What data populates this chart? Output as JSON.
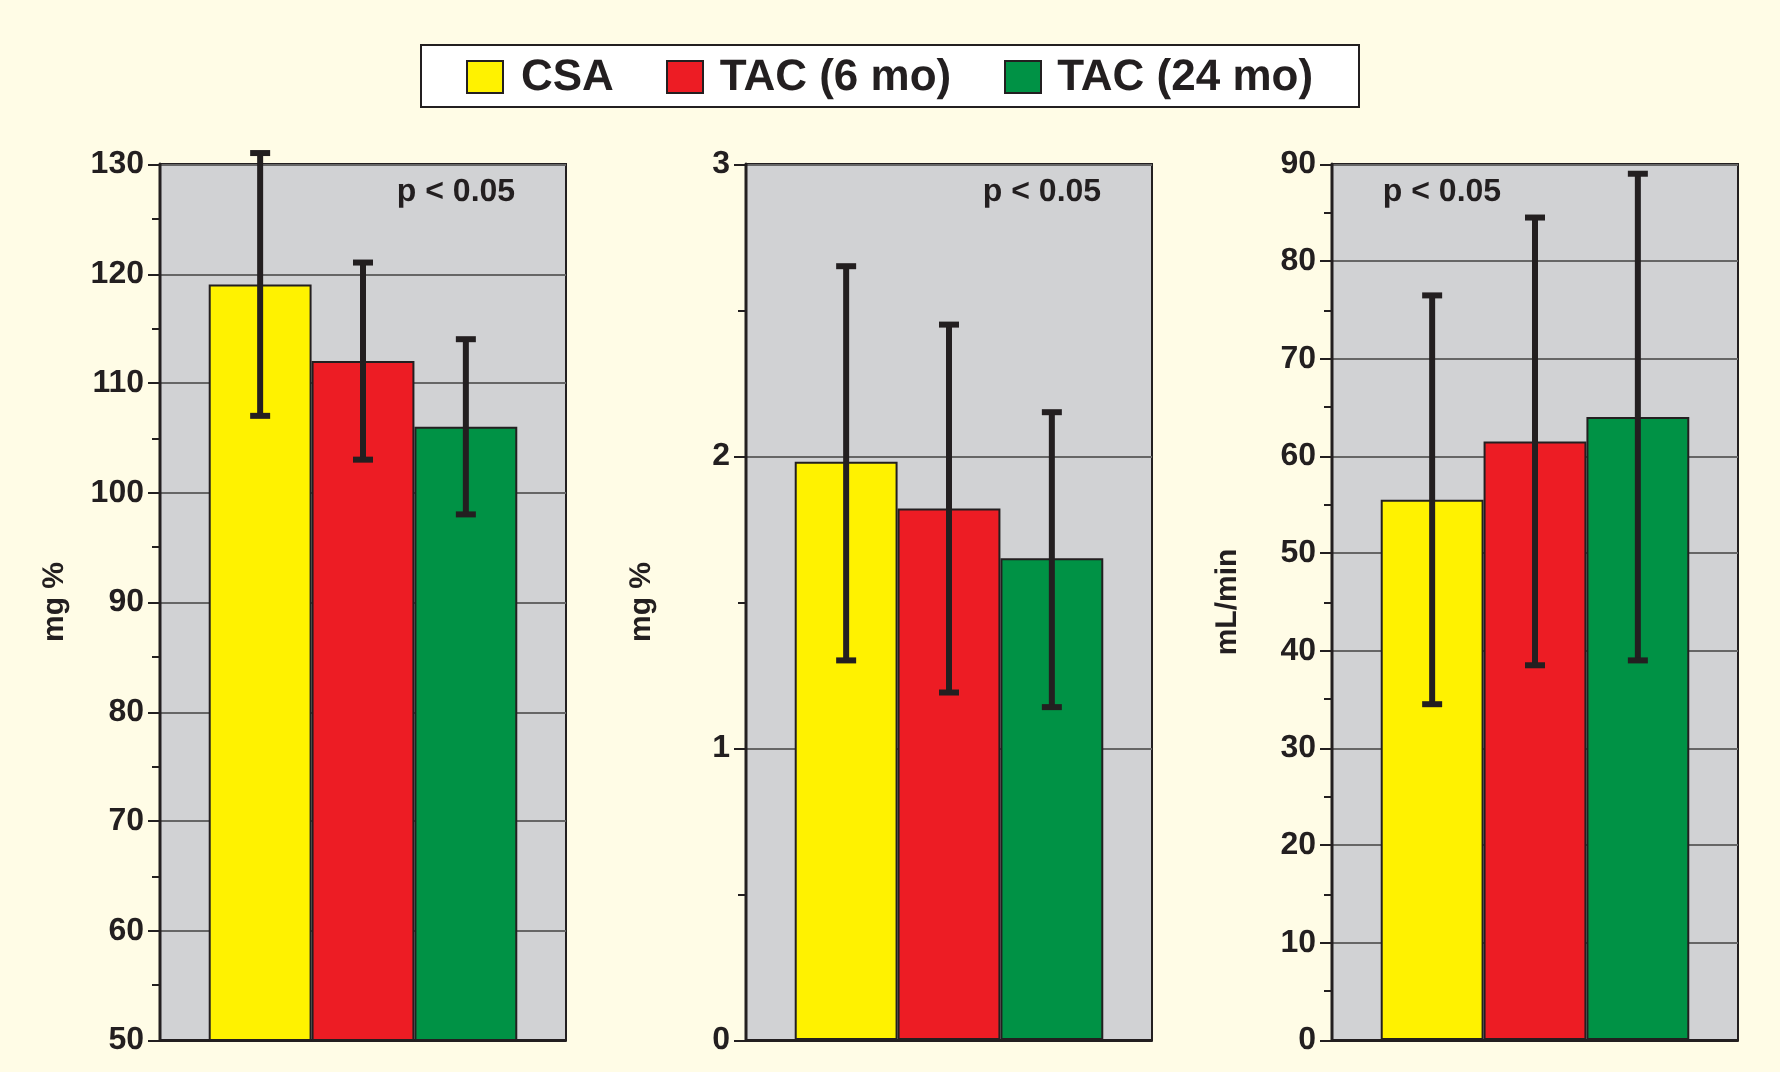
{
  "chart_data": [
    {
      "type": "bar",
      "categories": [
        null
      ],
      "ylabel": "mg %",
      "ylim": [
        50,
        130
      ],
      "yticks": [
        50,
        60,
        70,
        80,
        90,
        100,
        110,
        120,
        130
      ],
      "grid": "y",
      "legend": "top",
      "annotations": [
        "p < 0.05"
      ],
      "series": [
        {
          "name": "CSA",
          "color": "#fff200",
          "values": [
            119
          ],
          "errors": [
            [
              107,
              131
            ]
          ]
        },
        {
          "name": "TAC (6 mo)",
          "color": "#ed1c24",
          "values": [
            112
          ],
          "errors": [
            [
              103,
              121
            ]
          ]
        },
        {
          "name": "TAC (24 mo)",
          "color": "#009245",
          "values": [
            106
          ],
          "errors": [
            [
              98,
              114
            ]
          ]
        }
      ]
    },
    {
      "type": "bar",
      "categories": [
        null
      ],
      "ylabel": "mg %",
      "ylim": [
        0,
        3
      ],
      "yticks": [
        0,
        1,
        2,
        3
      ],
      "grid": "y",
      "annotations": [
        "p < 0.05"
      ],
      "series": [
        {
          "color": "#fff200",
          "values": [
            1.98
          ],
          "errors": [
            [
              1.3,
              2.65
            ]
          ]
        },
        {
          "color": "#ed1c24",
          "values": [
            1.82
          ],
          "errors": [
            [
              1.19,
              2.45
            ]
          ]
        },
        {
          "color": "#009245",
          "values": [
            1.65
          ],
          "errors": [
            [
              1.14,
              2.15
            ]
          ]
        }
      ]
    },
    {
      "type": "bar",
      "categories": [
        null
      ],
      "ylabel": "mL/min",
      "ylim": [
        0,
        90
      ],
      "yticks": [
        0,
        10,
        20,
        30,
        40,
        50,
        60,
        70,
        80,
        90
      ],
      "grid": "y",
      "annotations": [
        "p < 0.05"
      ],
      "series": [
        {
          "color": "#fff200",
          "values": [
            55.5
          ],
          "errors": [
            [
              34.5,
              76.5
            ]
          ]
        },
        {
          "color": "#ed1c24",
          "values": [
            61.5
          ],
          "errors": [
            [
              38.5,
              84.5
            ]
          ]
        },
        {
          "color": "#009245",
          "values": [
            64
          ],
          "errors": [
            [
              39,
              89
            ]
          ]
        }
      ]
    }
  ]
}
